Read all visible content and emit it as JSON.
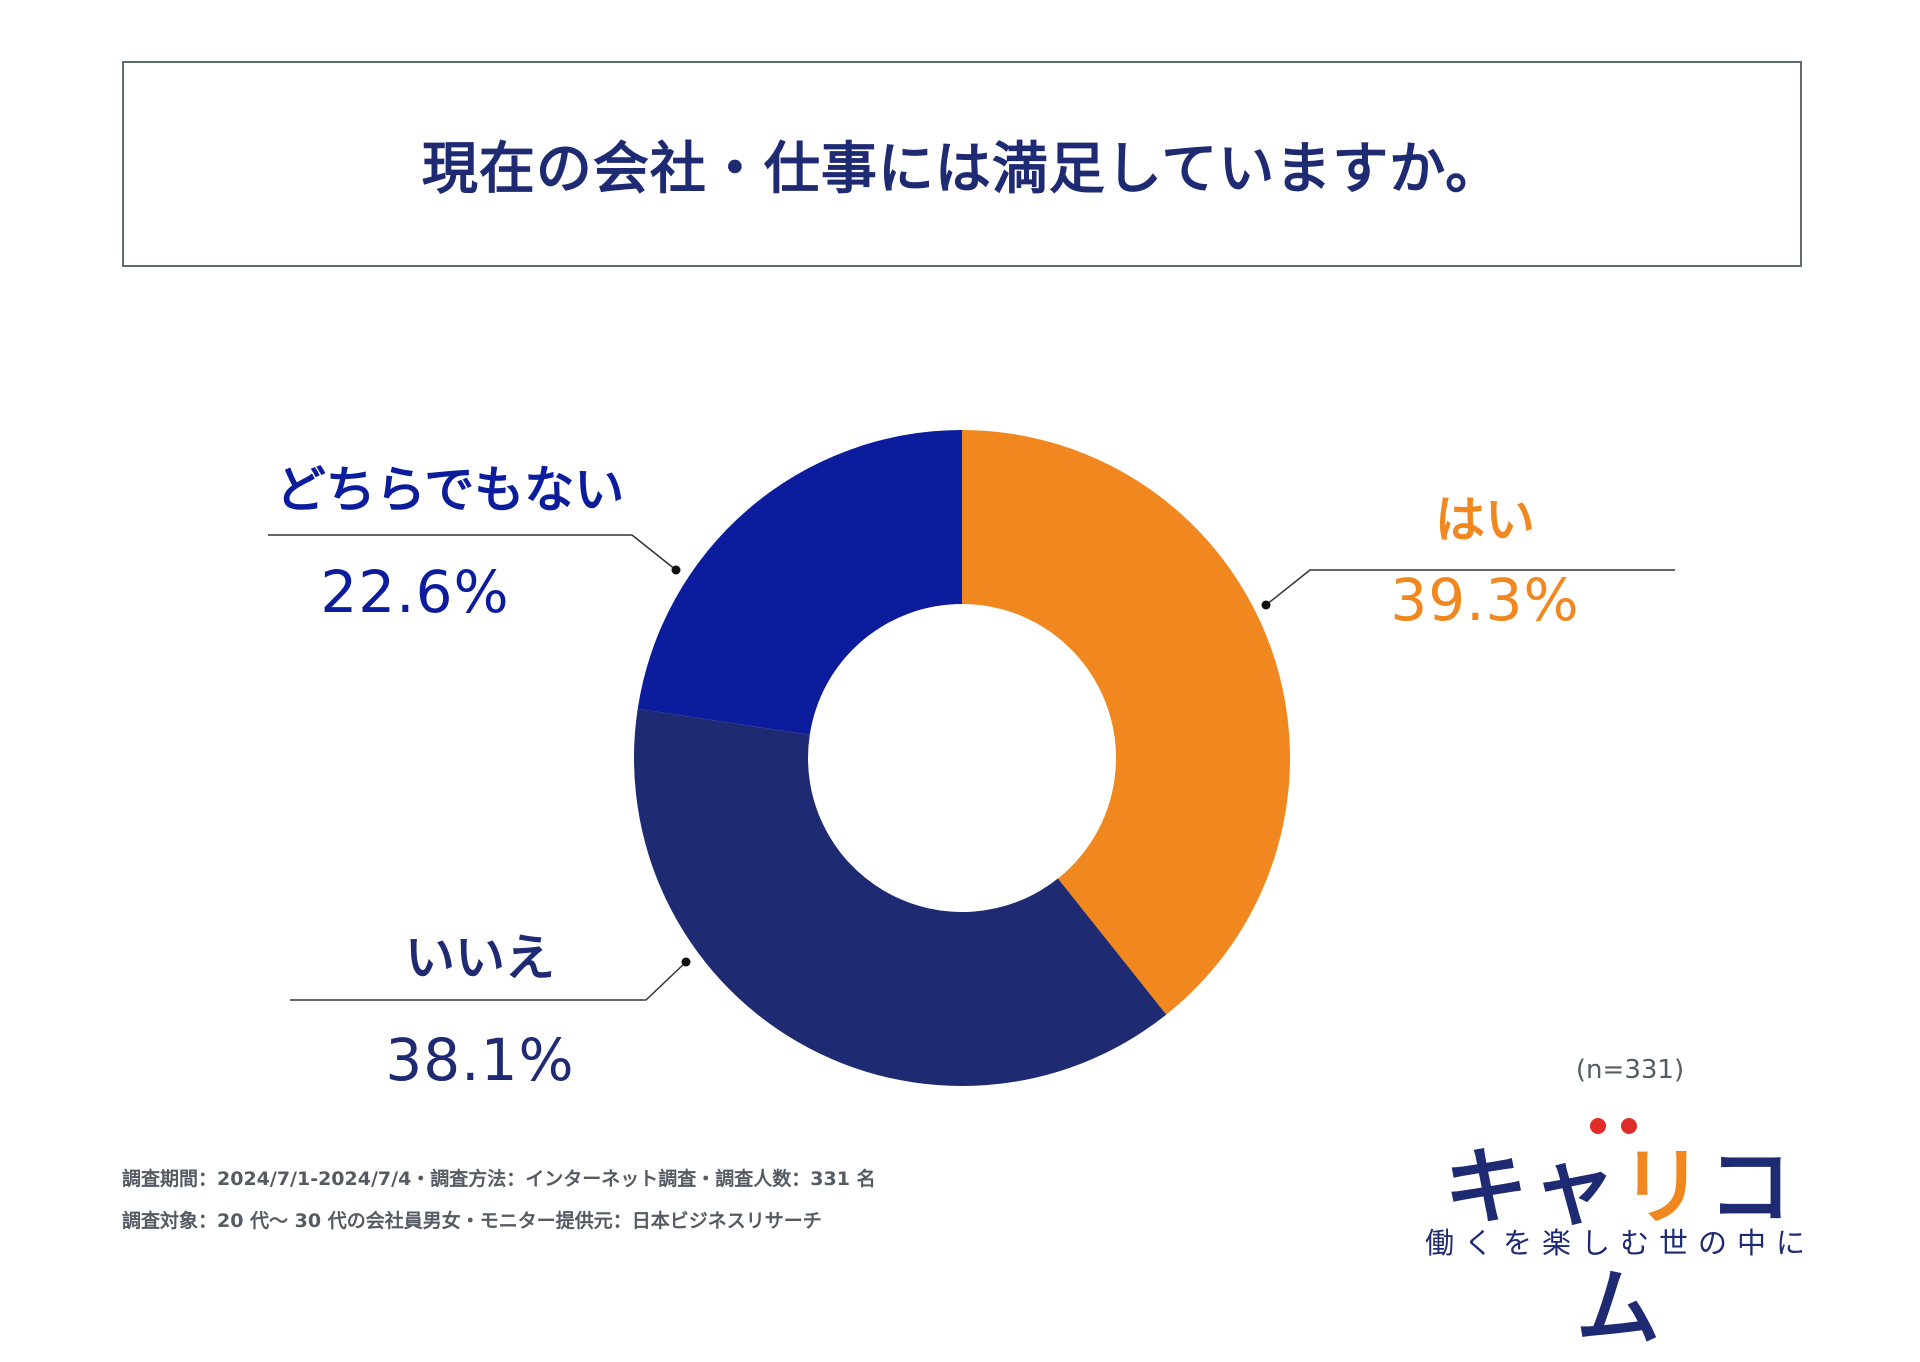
{
  "title": "現在の会社・仕事には満足していますか。",
  "chart_data": {
    "type": "pie",
    "donut": true,
    "title": "現在の会社・仕事には満足していますか。",
    "categories": [
      "はい",
      "いいえ",
      "どちらでもない"
    ],
    "values": [
      39.3,
      38.1,
      22.6
    ],
    "value_labels": [
      "39.3%",
      "38.1%",
      "22.6%"
    ],
    "colors": [
      "#f0871f",
      "#1e2a72",
      "#0b1c9c"
    ],
    "start": "12 o'clock, clockwise"
  },
  "sample_size": "(n=331)",
  "notes": {
    "line1": "調査期間：2024/7/1-2024/7/4・調査方法：インターネット調査・調査人数：331 名",
    "line2": "調査対象：20 代～ 30 代の会社員男女・モニター提供元：日本ビジネスリサーチ"
  },
  "brand": {
    "name_part1": "キャ",
    "name_accent": "リ",
    "name_part2": "コム",
    "tagline": "働くを楽しむ世の中に",
    "dot_colors": [
      "#e02b2b",
      "#e02b2b"
    ]
  }
}
